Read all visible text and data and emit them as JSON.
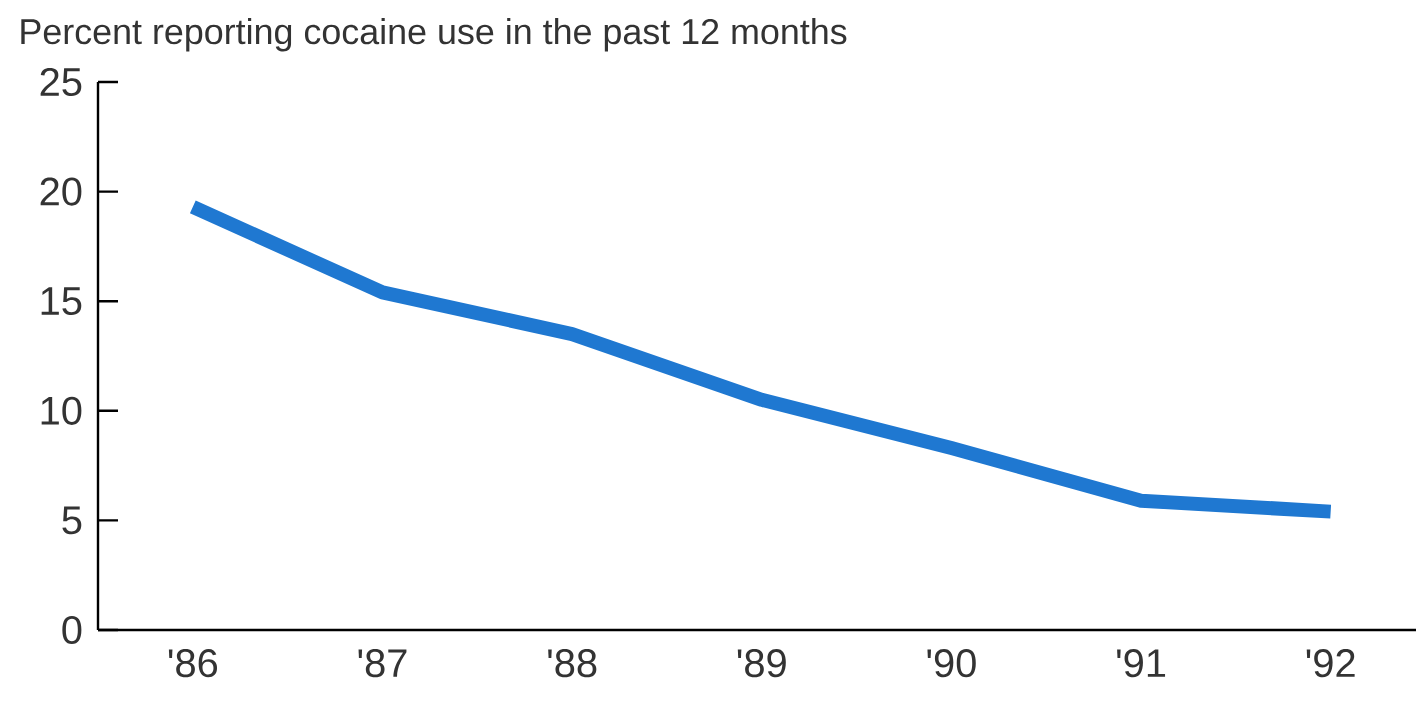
{
  "chart_data": {
    "type": "line",
    "title": "Percent reporting cocaine use in the past 12 months",
    "categories": [
      "'86",
      "'87",
      "'88",
      "'89",
      "'90",
      "'91",
      "'92"
    ],
    "values": [
      19.3,
      15.4,
      13.5,
      10.5,
      8.3,
      5.9,
      5.4
    ],
    "color": "#1f78d1",
    "ylim": [
      0,
      25
    ],
    "yticks": [
      0,
      5,
      10,
      15,
      20,
      25
    ],
    "grid": false,
    "marker": "none",
    "line_style": "solid"
  }
}
